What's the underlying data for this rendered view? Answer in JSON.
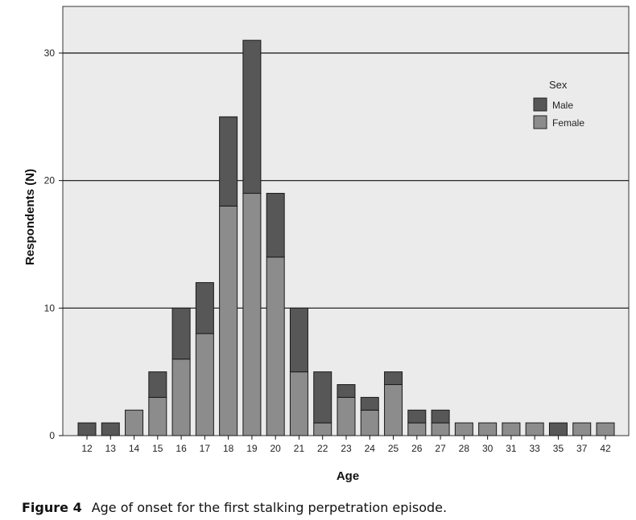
{
  "chart_data": {
    "type": "bar",
    "stacked": true,
    "categories": [
      "12",
      "13",
      "14",
      "15",
      "16",
      "17",
      "18",
      "19",
      "20",
      "21",
      "22",
      "23",
      "24",
      "25",
      "26",
      "27",
      "28",
      "30",
      "31",
      "33",
      "35",
      "37",
      "42"
    ],
    "series": [
      {
        "name": "Female",
        "values": [
          0,
          0,
          2,
          3,
          6,
          8,
          18,
          19,
          14,
          5,
          1,
          3,
          2,
          4,
          1,
          1,
          1,
          1,
          1,
          1,
          0,
          1,
          1
        ],
        "color": "#8c8c8c"
      },
      {
        "name": "Male",
        "values": [
          1,
          1,
          0,
          2,
          4,
          4,
          7,
          12,
          5,
          5,
          4,
          1,
          1,
          1,
          1,
          1,
          0,
          0,
          0,
          0,
          1,
          0,
          0
        ],
        "color": "#575757"
      }
    ],
    "xlabel": "Age",
    "ylabel": "Respondents (N)",
    "ylim": [
      0,
      33
    ],
    "yticks": [
      0,
      10,
      20,
      30
    ],
    "grid": true,
    "legend": {
      "title": "Sex",
      "entries": [
        "Male",
        "Female"
      ],
      "position": "top-right"
    },
    "plot_background": "#ebebeb"
  },
  "caption": {
    "label": "Figure 4",
    "text": "Age of onset for the first stalking perpetration episode."
  }
}
